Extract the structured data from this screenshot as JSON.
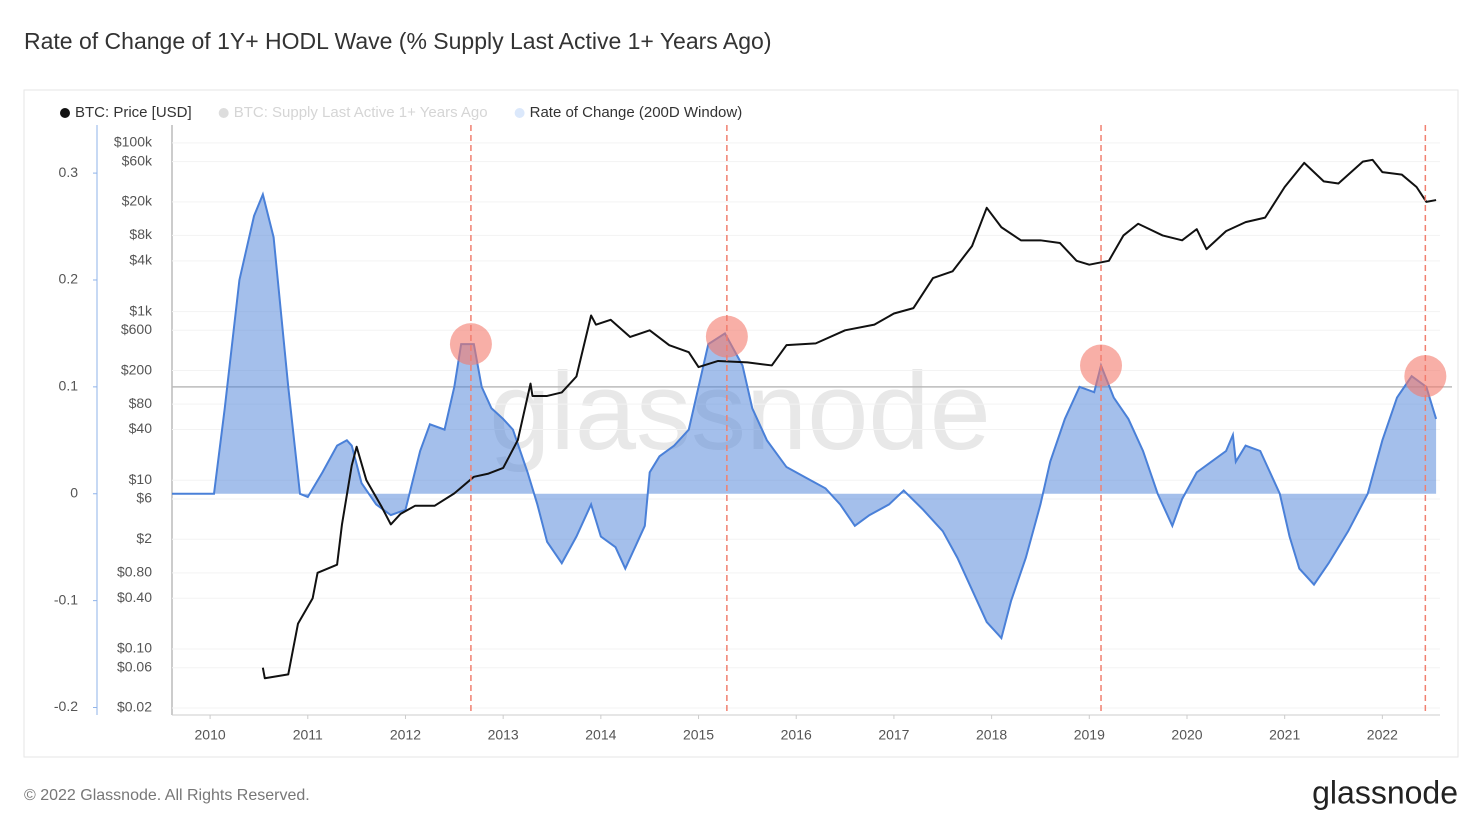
{
  "chart_data": {
    "type": "area-line",
    "title": "Rate of Change of 1Y+ HODL Wave (% Supply Last Active 1+ Years Ago)",
    "watermark": "glassnode",
    "xlim": [
      2009.61,
      2022.59
    ],
    "xticks": [
      2010,
      2011,
      2012,
      2013,
      2014,
      2015,
      2016,
      2017,
      2018,
      2019,
      2020,
      2021,
      2022
    ],
    "ylim": [
      -0.207,
      0.345
    ],
    "yticks": [
      -0.2,
      -0.1,
      0,
      0.1,
      0.2,
      0.3
    ],
    "y2lim": [
      0.0165,
      163000
    ],
    "y2scale": "log",
    "y2ticks": [
      {
        "value": 100000,
        "label": "$100k"
      },
      {
        "value": 60000,
        "label": "$60k"
      },
      {
        "value": 20000,
        "label": "$20k"
      },
      {
        "value": 8000,
        "label": "$8k"
      },
      {
        "value": 4000,
        "label": "$4k"
      },
      {
        "value": 1000,
        "label": "$1k"
      },
      {
        "value": 600,
        "label": "$600"
      },
      {
        "value": 200,
        "label": "$200"
      },
      {
        "value": 80,
        "label": "$80"
      },
      {
        "value": 40,
        "label": "$40"
      },
      {
        "value": 10,
        "label": "$10"
      },
      {
        "value": 6,
        "label": "$6"
      },
      {
        "value": 2,
        "label": "$2"
      },
      {
        "value": 0.8,
        "label": "$0.80"
      },
      {
        "value": 0.4,
        "label": "$0.40"
      },
      {
        "value": 0.1,
        "label": "$0.10"
      },
      {
        "value": 0.06,
        "label": "$0.06"
      },
      {
        "value": 0.02,
        "label": "$0.02"
      }
    ],
    "hline": 0.1,
    "highlights": [
      {
        "x": 2012.67,
        "y": 0.14
      },
      {
        "x": 2015.29,
        "y": 0.147
      },
      {
        "x": 2019.12,
        "y": 0.12
      },
      {
        "x": 2022.44,
        "y": 0.11
      }
    ],
    "series": [
      {
        "name": "BTC: Price [USD]",
        "color": "#111111",
        "axis": "y2",
        "kind": "line",
        "x": [
          2010.54,
          2010.56,
          2010.8,
          2010.85,
          2010.9,
          2011.05,
          2011.1,
          2011.3,
          2011.35,
          2011.45,
          2011.5,
          2011.6,
          2011.75,
          2011.85,
          2011.95,
          2012.1,
          2012.3,
          2012.5,
          2012.7,
          2012.85,
          2013.0,
          2013.15,
          2013.28,
          2013.3,
          2013.45,
          2013.6,
          2013.75,
          2013.9,
          2013.95,
          2014.1,
          2014.3,
          2014.5,
          2014.7,
          2014.9,
          2015.0,
          2015.2,
          2015.5,
          2015.75,
          2015.9,
          2016.2,
          2016.5,
          2016.8,
          2017.0,
          2017.2,
          2017.4,
          2017.6,
          2017.8,
          2017.95,
          2018.1,
          2018.3,
          2018.5,
          2018.7,
          2018.87,
          2019.0,
          2019.2,
          2019.35,
          2019.5,
          2019.75,
          2019.95,
          2020.1,
          2020.2,
          2020.4,
          2020.6,
          2020.8,
          2021.0,
          2021.2,
          2021.4,
          2021.55,
          2021.8,
          2021.9,
          2022.0,
          2022.2,
          2022.35,
          2022.45,
          2022.55
        ],
        "values": [
          0.06,
          0.045,
          0.05,
          0.1,
          0.2,
          0.4,
          0.8,
          1,
          3,
          15,
          25,
          10,
          5,
          3,
          4,
          5,
          5,
          7,
          11,
          12,
          14,
          30,
          140,
          100,
          100,
          110,
          170,
          900,
          700,
          800,
          500,
          600,
          400,
          330,
          220,
          260,
          250,
          230,
          400,
          420,
          600,
          700,
          950,
          1100,
          2500,
          3000,
          6000,
          17000,
          10000,
          7000,
          7000,
          6500,
          4000,
          3600,
          4000,
          8000,
          11000,
          8000,
          7000,
          9500,
          5500,
          9000,
          11500,
          13000,
          30000,
          58000,
          35000,
          33000,
          60000,
          63000,
          45000,
          42000,
          30000,
          20000,
          21000
        ]
      },
      {
        "name": "BTC: Supply Last Active 1+ Years Ago",
        "color": "#dddddd",
        "hidden": true
      },
      {
        "name": "Rate of Change (200D Window)",
        "color": "#4a80d8",
        "kind": "area",
        "x": [
          2009.61,
          2010.04,
          2010.15,
          2010.3,
          2010.45,
          2010.54,
          2010.65,
          2010.8,
          2010.92,
          2011.0,
          2011.15,
          2011.3,
          2011.4,
          2011.45,
          2011.55,
          2011.7,
          2011.85,
          2012.0,
          2012.15,
          2012.25,
          2012.4,
          2012.5,
          2012.57,
          2012.7,
          2012.78,
          2012.88,
          2013.0,
          2013.1,
          2013.25,
          2013.35,
          2013.45,
          2013.6,
          2013.75,
          2013.9,
          2014.0,
          2014.15,
          2014.25,
          2014.45,
          2014.5,
          2014.6,
          2014.75,
          2014.9,
          2015.0,
          2015.1,
          2015.27,
          2015.45,
          2015.55,
          2015.7,
          2015.9,
          2016.1,
          2016.3,
          2016.45,
          2016.6,
          2016.75,
          2016.95,
          2017.1,
          2017.3,
          2017.5,
          2017.65,
          2017.8,
          2017.95,
          2018.1,
          2018.2,
          2018.35,
          2018.5,
          2018.6,
          2018.75,
          2018.9,
          2019.05,
          2019.12,
          2019.25,
          2019.4,
          2019.55,
          2019.7,
          2019.85,
          2019.95,
          2020.1,
          2020.25,
          2020.4,
          2020.47,
          2020.5,
          2020.6,
          2020.75,
          2020.95,
          2021.05,
          2021.15,
          2021.3,
          2021.45,
          2021.65,
          2021.85,
          2022.0,
          2022.15,
          2022.3,
          2022.45,
          2022.55
        ],
        "values": [
          0,
          0,
          0.08,
          0.2,
          0.26,
          0.28,
          0.24,
          0.1,
          0,
          -0.003,
          0.02,
          0.045,
          0.05,
          0.045,
          0.01,
          -0.01,
          -0.02,
          -0.015,
          0.04,
          0.065,
          0.06,
          0.1,
          0.14,
          0.14,
          0.1,
          0.08,
          0.07,
          0.06,
          0.02,
          -0.01,
          -0.045,
          -0.065,
          -0.04,
          -0.01,
          -0.04,
          -0.05,
          -0.07,
          -0.03,
          0.02,
          0.035,
          0.045,
          0.06,
          0.1,
          0.14,
          0.15,
          0.12,
          0.08,
          0.05,
          0.025,
          0.015,
          0.005,
          -0.01,
          -0.03,
          -0.02,
          -0.01,
          0.003,
          -0.015,
          -0.035,
          -0.06,
          -0.09,
          -0.12,
          -0.135,
          -0.1,
          -0.06,
          -0.01,
          0.03,
          0.07,
          0.1,
          0.095,
          0.12,
          0.09,
          0.07,
          0.04,
          0,
          -0.03,
          -0.005,
          0.02,
          0.03,
          0.04,
          0.055,
          0.03,
          0.045,
          0.04,
          0,
          -0.04,
          -0.07,
          -0.085,
          -0.065,
          -0.035,
          0,
          0.05,
          0.09,
          0.11,
          0.1,
          0.07
        ]
      }
    ]
  },
  "footer": {
    "copyright": "© 2022 Glassnode. All Rights Reserved.",
    "logo": "glassnode"
  }
}
